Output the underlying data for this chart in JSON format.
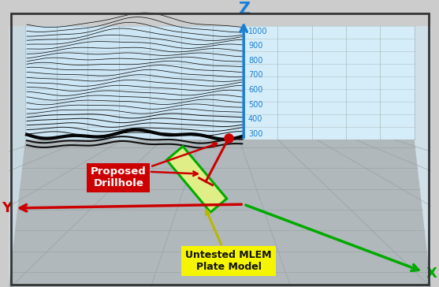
{
  "bg_outer_color": "#cccccc",
  "bg_inner_color": "#e8e8e8",
  "back_wall_left_color": "#daeef8",
  "back_wall_center_color": "#cce6f5",
  "back_wall_right_color": "#d5edf8",
  "side_wall_left_color": "#c8d8e0",
  "side_wall_right_color": "#d0dfe8",
  "floor_color": "#b0b8bc",
  "floor_mid_color": "#c0c8cc",
  "grid_color": "#909898",
  "seismic_line_color": "#151515",
  "z_axis_color": "#1a7fd4",
  "x_axis_color": "#00aa00",
  "y_axis_color": "#cc0000",
  "drillhole_color": "#cc0000",
  "plate_outline_color": "#00aa00",
  "plate_fill_color": "#e0ee88",
  "annotation_drillhole_bg": "#cc0000",
  "annotation_drillhole_fg": "#ffffff",
  "annotation_plate_bg": "#f5f500",
  "annotation_plate_fg": "#111111",
  "z_tick_labels": [
    "300",
    "400",
    "500",
    "600",
    "700",
    "800",
    "900",
    "1000"
  ],
  "border_color": "#333333"
}
